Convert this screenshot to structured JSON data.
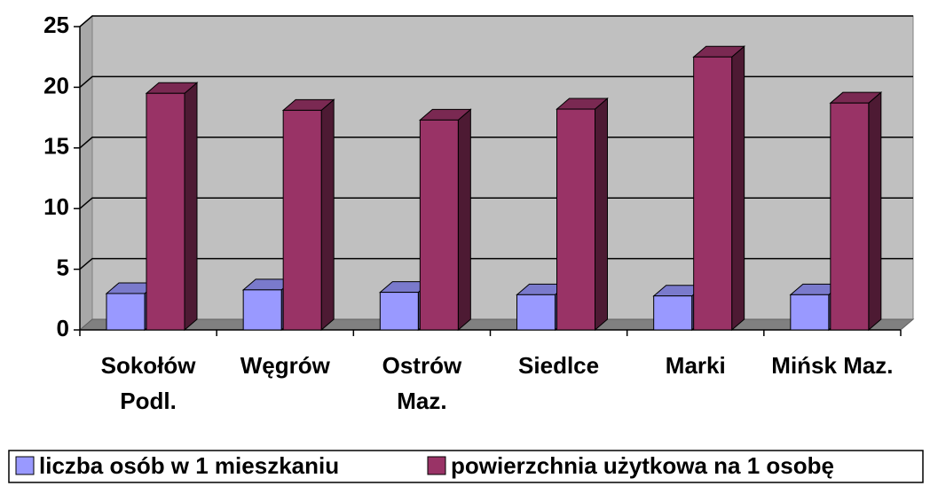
{
  "chart_data": {
    "type": "bar3d",
    "categories": [
      "Sokołów Podl.",
      "Węgrów",
      "Ostrów Maz.",
      "Siedlce",
      "Marki",
      "Mińsk Maz."
    ],
    "series": [
      {
        "name": "liczba osób w 1 mieszkaniu",
        "color": "#9999ff",
        "values": [
          3.0,
          3.3,
          3.1,
          2.9,
          2.8,
          2.9
        ]
      },
      {
        "name": "powierzchnia użytkowa na 1 osobę",
        "color": "#993366",
        "values": [
          19.5,
          18.1,
          17.3,
          18.2,
          22.5,
          18.7
        ]
      }
    ],
    "ylim": [
      0,
      25
    ],
    "yticks": [
      0,
      5,
      10,
      15,
      20,
      25
    ],
    "grid": true,
    "legend": "bottom"
  }
}
